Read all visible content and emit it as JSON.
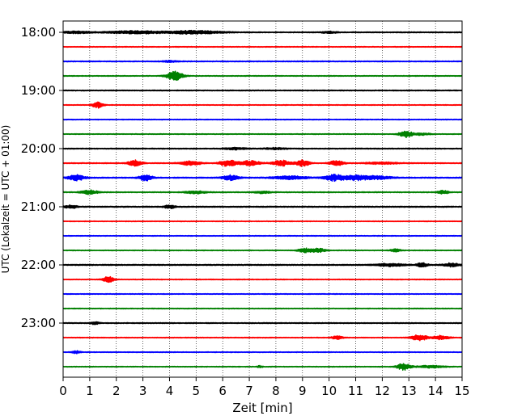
{
  "chart_data": {
    "type": "line",
    "title": "",
    "xlabel": "Zeit  [min]",
    "ylabel": "UTC (Lokalzeit = UTC + 01:00)",
    "xlim": [
      0,
      15
    ],
    "x_ticks": [
      0,
      1,
      2,
      3,
      4,
      5,
      6,
      7,
      8,
      9,
      10,
      11,
      12,
      13,
      14,
      15
    ],
    "y_tick_labels": [
      "18:00",
      "19:00",
      "20:00",
      "21:00",
      "22:00",
      "23:00"
    ],
    "start_time": "18:00",
    "row_interval_min": 15,
    "grid": "vertical dotted at each minute",
    "line_colors": [
      "#000000",
      "#ff0000",
      "#0000ff",
      "#008000"
    ],
    "series": [
      {
        "row_start": "18:00",
        "color": "#000000",
        "noise": 0.5,
        "events": [
          [
            0.5,
            0.5,
            1.2
          ],
          [
            2.8,
            1.2,
            1.6
          ],
          [
            4.5,
            0.5,
            1.0
          ],
          [
            5.3,
            0.8,
            1.5
          ],
          [
            10.0,
            0.3,
            1.0
          ]
        ]
      },
      {
        "row_start": "18:15",
        "color": "#ff0000",
        "noise": 0.4,
        "events": []
      },
      {
        "row_start": "18:30",
        "color": "#0000ff",
        "noise": 0.5,
        "events": [
          [
            4.0,
            0.3,
            0.8
          ]
        ]
      },
      {
        "row_start": "18:45",
        "color": "#008000",
        "noise": 0.4,
        "events": [
          [
            4.2,
            0.3,
            5.5
          ]
        ]
      },
      {
        "row_start": "19:00",
        "color": "#000000",
        "noise": 0.5,
        "events": []
      },
      {
        "row_start": "19:15",
        "color": "#ff0000",
        "noise": 0.4,
        "events": [
          [
            1.3,
            0.2,
            3.5
          ]
        ]
      },
      {
        "row_start": "19:30",
        "color": "#0000ff",
        "noise": 0.4,
        "events": []
      },
      {
        "row_start": "19:45",
        "color": "#008000",
        "noise": 0.4,
        "events": [
          [
            12.9,
            0.25,
            4.0
          ],
          [
            13.5,
            0.3,
            1.2
          ]
        ]
      },
      {
        "row_start": "20:00",
        "color": "#000000",
        "noise": 0.5,
        "events": [
          [
            6.5,
            0.4,
            1.2
          ],
          [
            8.0,
            0.4,
            1.0
          ]
        ]
      },
      {
        "row_start": "20:15",
        "color": "#ff0000",
        "noise": 0.5,
        "events": [
          [
            2.7,
            0.25,
            3.5
          ],
          [
            4.8,
            0.4,
            2.5
          ],
          [
            6.2,
            0.3,
            3.8
          ],
          [
            7.0,
            0.4,
            3.0
          ],
          [
            8.2,
            0.3,
            3.5
          ],
          [
            9.0,
            0.25,
            3.8
          ],
          [
            10.3,
            0.25,
            3.5
          ],
          [
            12.0,
            0.6,
            1.2
          ]
        ]
      },
      {
        "row_start": "20:30",
        "color": "#0000ff",
        "noise": 0.6,
        "events": [
          [
            0.5,
            0.3,
            3.5
          ],
          [
            3.1,
            0.25,
            3.5
          ],
          [
            6.3,
            0.3,
            3.0
          ],
          [
            8.5,
            0.6,
            2.0
          ],
          [
            10.2,
            0.35,
            3.8
          ],
          [
            11.0,
            0.4,
            3.0
          ],
          [
            11.8,
            0.5,
            2.0
          ]
        ]
      },
      {
        "row_start": "20:45",
        "color": "#008000",
        "noise": 0.5,
        "events": [
          [
            1.0,
            0.3,
            2.5
          ],
          [
            5.0,
            0.4,
            1.5
          ],
          [
            7.5,
            0.3,
            1.2
          ],
          [
            14.3,
            0.2,
            2.0
          ]
        ]
      },
      {
        "row_start": "21:00",
        "color": "#000000",
        "noise": 0.6,
        "events": [
          [
            0.3,
            0.2,
            2.0
          ],
          [
            4.0,
            0.2,
            1.8
          ]
        ]
      },
      {
        "row_start": "21:15",
        "color": "#ff0000",
        "noise": 0.4,
        "events": []
      },
      {
        "row_start": "21:30",
        "color": "#0000ff",
        "noise": 0.4,
        "events": []
      },
      {
        "row_start": "21:45",
        "color": "#008000",
        "noise": 0.4,
        "events": [
          [
            9.1,
            0.25,
            2.5
          ],
          [
            9.6,
            0.25,
            2.5
          ],
          [
            12.5,
            0.2,
            1.6
          ]
        ]
      },
      {
        "row_start": "22:00",
        "color": "#000000",
        "noise": 0.6,
        "events": [
          [
            12.3,
            0.5,
            1.5
          ],
          [
            13.5,
            0.2,
            2.5
          ],
          [
            14.6,
            0.3,
            2.0
          ]
        ]
      },
      {
        "row_start": "22:15",
        "color": "#ff0000",
        "noise": 0.4,
        "events": [
          [
            1.7,
            0.2,
            3.5
          ]
        ]
      },
      {
        "row_start": "22:30",
        "color": "#0000ff",
        "noise": 0.4,
        "events": []
      },
      {
        "row_start": "22:45",
        "color": "#008000",
        "noise": 0.4,
        "events": []
      },
      {
        "row_start": "23:00",
        "color": "#000000",
        "noise": 0.5,
        "events": [
          [
            1.2,
            0.15,
            1.5
          ]
        ]
      },
      {
        "row_start": "23:15",
        "color": "#ff0000",
        "noise": 0.4,
        "events": [
          [
            10.3,
            0.2,
            2.0
          ],
          [
            13.4,
            0.3,
            3.5
          ],
          [
            14.2,
            0.3,
            2.5
          ]
        ]
      },
      {
        "row_start": "23:30",
        "color": "#0000ff",
        "noise": 0.4,
        "events": [
          [
            0.5,
            0.15,
            1.6
          ]
        ]
      },
      {
        "row_start": "23:45",
        "color": "#008000",
        "noise": 0.4,
        "events": [
          [
            12.8,
            0.25,
            4.0
          ],
          [
            13.8,
            0.5,
            1.5
          ],
          [
            7.4,
            0.1,
            1.2
          ]
        ]
      }
    ]
  }
}
